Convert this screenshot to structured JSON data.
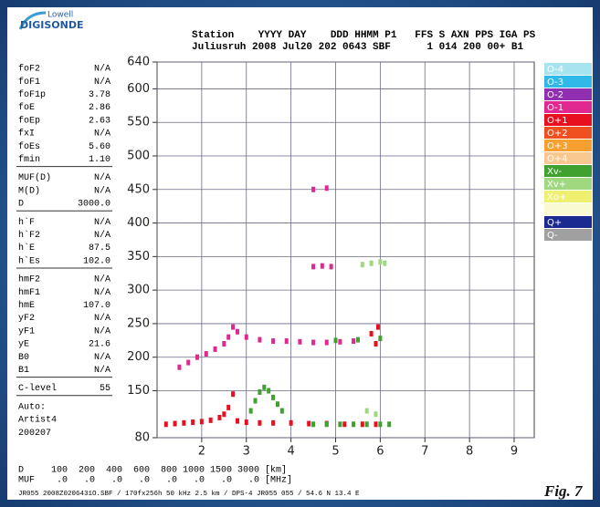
{
  "logo": {
    "top": "Lowell",
    "bottom": "DIGISONDE"
  },
  "header": {
    "line1": "Station    YYYY DAY    DDD HHMM P1   FFS S AXN PPS IGA PS",
    "line2": "Juliusruh 2008 Jul20 202 0643 SBF      1 014 200 00+ B1"
  },
  "parameters": [
    [
      [
        "foF2",
        "N/A"
      ],
      [
        "foF1",
        "N/A"
      ],
      [
        "foF1p",
        "3.78"
      ],
      [
        "foE",
        "2.86"
      ],
      [
        "foEp",
        "2.63"
      ],
      [
        "fxI",
        "N/A"
      ],
      [
        "foEs",
        "5.60"
      ],
      [
        "fmin",
        "1.10"
      ]
    ],
    [
      [
        "MUF(D)",
        "N/A"
      ],
      [
        "M(D)",
        "N/A"
      ],
      [
        "D",
        "3000.0"
      ]
    ],
    [
      [
        "h`F",
        "N/A"
      ],
      [
        "h`F2",
        "N/A"
      ],
      [
        "h`E",
        "87.5"
      ],
      [
        "h`Es",
        "102.0"
      ]
    ],
    [
      [
        "hmF2",
        "N/A"
      ],
      [
        "hmF1",
        "N/A"
      ],
      [
        "hmE",
        "107.0"
      ],
      [
        "yF2",
        "N/A"
      ],
      [
        "yF1",
        "N/A"
      ],
      [
        "yE",
        "21.6"
      ],
      [
        "B0",
        "N/A"
      ],
      [
        "B1",
        "N/A"
      ]
    ],
    [
      [
        "C-level",
        "55"
      ]
    ],
    [
      [
        "Auto:"
      ],
      [
        "Artist4"
      ],
      [
        "200207"
      ]
    ]
  ],
  "footer": {
    "line1": "D     100  200  400  600  800 1000 1500 3000 [km]",
    "line2": "MUF    .0   .0   .0   .0   .0   .0   .0   .0 [MHz]",
    "line3": "JR055 2008Z0206431O.SBF / 170fx256h 50 kHz 2.5 km / DPS-4 JR055 055 / 54.6 N 13.4 E",
    "figure": "Fig. 7"
  },
  "chart_data": {
    "type": "scatter",
    "xlim": [
      1,
      9.45
    ],
    "ylim": [
      80,
      640
    ],
    "xticks": [
      2,
      3,
      4,
      5,
      6,
      7,
      8,
      9
    ],
    "yticks": [
      80,
      150,
      200,
      250,
      300,
      350,
      400,
      450,
      500,
      550,
      600,
      640
    ],
    "grid": true,
    "legend": [
      {
        "label": "O-4",
        "color": "#a8e4f0"
      },
      {
        "label": "O-3",
        "color": "#30b8e8"
      },
      {
        "label": "O-2",
        "color": "#9030b0"
      },
      {
        "label": "O-1",
        "color": "#e02890"
      },
      {
        "label": "O+1",
        "color": "#e8101e"
      },
      {
        "label": "O+2",
        "color": "#f05020"
      },
      {
        "label": "O+3",
        "color": "#f5a030"
      },
      {
        "label": "O+4",
        "color": "#f8c890"
      },
      {
        "label": "Xv-",
        "color": "#40a030"
      },
      {
        "label": "Xv+",
        "color": "#a0d880"
      },
      {
        "label": "Xo+",
        "color": "#f0f070"
      },
      {
        "label": "Q+",
        "color": "#1a2a90"
      },
      {
        "label": "Q-",
        "color": "#a0a0a0"
      }
    ],
    "series": [
      {
        "name": "O-1",
        "color": "#e02890",
        "x": [
          1.5,
          1.7,
          1.9,
          2.1,
          2.3,
          2.5,
          2.6,
          2.7,
          2.8,
          3.0,
          3.3,
          3.6,
          3.9,
          4.2,
          4.5,
          4.8,
          5.1,
          5.4,
          4.5,
          4.7,
          4.9,
          4.5,
          4.8
        ],
        "values": [
          185,
          192,
          200,
          205,
          212,
          220,
          230,
          245,
          238,
          230,
          226,
          224,
          224,
          223,
          222,
          222,
          223,
          224,
          335,
          336,
          335,
          450,
          452
        ]
      },
      {
        "name": "O+1",
        "color": "#e8101e",
        "x": [
          1.2,
          1.4,
          1.6,
          1.8,
          2.0,
          2.2,
          2.4,
          2.5,
          2.6,
          2.7,
          2.8,
          3.0,
          3.3,
          3.6,
          4.0,
          4.4,
          4.8,
          5.2,
          5.6,
          5.9,
          5.8,
          5.9,
          5.95
        ],
        "values": [
          100,
          101,
          102,
          103,
          104,
          106,
          110,
          115,
          125,
          145,
          105,
          103,
          102,
          102,
          102,
          101,
          101,
          100,
          100,
          100,
          235,
          220,
          245
        ]
      },
      {
        "name": "Xv-",
        "color": "#40a030",
        "x": [
          3.1,
          3.2,
          3.3,
          3.4,
          3.5,
          3.6,
          3.7,
          3.8,
          4.5,
          4.8,
          5.1,
          5.4,
          5.7,
          6.0,
          6.2,
          5.0,
          5.5,
          6.0
        ],
        "values": [
          120,
          135,
          148,
          155,
          150,
          140,
          130,
          120,
          100,
          100,
          100,
          100,
          100,
          100,
          100,
          225,
          226,
          228
        ]
      },
      {
        "name": "Xv+",
        "color": "#a0d880",
        "x": [
          5.6,
          5.8,
          6.0,
          6.1,
          5.7,
          5.9
        ],
        "values": [
          338,
          340,
          342,
          340,
          120,
          115
        ]
      }
    ]
  }
}
